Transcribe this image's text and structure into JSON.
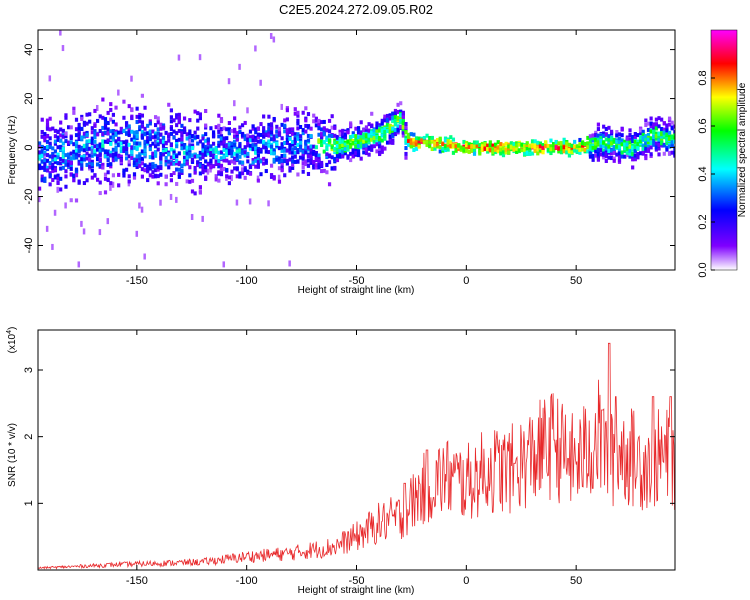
{
  "title": "C2E5.2024.272.09.05.R02",
  "colors": {
    "snr_line": "#e8282a",
    "axis": "#000000"
  },
  "chart_data": [
    {
      "type": "heatmap",
      "xlabel": "Height of straight line (km)",
      "ylabel": "Frequency (Hz)",
      "xlim": [
        -195,
        95
      ],
      "ylim": [
        -50,
        48
      ],
      "x_ticks": [
        -150,
        -100,
        -50,
        0,
        50
      ],
      "x_tick_labels": [
        "-150",
        "-100",
        "-50",
        "0",
        "50"
      ],
      "y_ticks": [
        -40,
        -20,
        0,
        20,
        40
      ],
      "y_tick_labels": [
        "-40",
        "-20",
        "0",
        "20",
        "40"
      ],
      "colorbar": {
        "label": "Normalized spectral amplitude",
        "range": [
          0,
          1
        ],
        "ticks": [
          0.0,
          0.2,
          0.4,
          0.6,
          0.8
        ],
        "tick_labels": [
          "0.0",
          "0.2",
          "0.4",
          "0.6",
          "0.8"
        ],
        "colormap": [
          "#ffffff",
          "#7f00ff",
          "#0000ff",
          "#00ffff",
          "#00ff00",
          "#ffff00",
          "#ff0000",
          "#ff00ff"
        ]
      },
      "ridge": {
        "comment_free_center_track": [
          [
            -195,
            -5
          ],
          [
            -175,
            0
          ],
          [
            -150,
            2
          ],
          [
            -125,
            -2
          ],
          [
            -100,
            -1
          ],
          [
            -80,
            2
          ],
          [
            -60,
            0
          ],
          [
            -40,
            5
          ],
          [
            -30,
            12
          ],
          [
            -28,
            3
          ],
          [
            -10,
            1
          ],
          [
            0,
            0
          ],
          [
            20,
            0
          ],
          [
            50,
            0
          ],
          [
            60,
            2
          ],
          [
            75,
            0
          ],
          [
            85,
            5
          ],
          [
            95,
            3
          ]
        ]
      }
    },
    {
      "type": "line",
      "xlabel": "Height of straight line (km)",
      "ylabel": "SNR (10 * v/v)",
      "y_multiplier": "(x10",
      "y_multiplier_exp": "4",
      "y_multiplier_close": ")",
      "xlim": [
        -195,
        95
      ],
      "ylim": [
        0,
        3.6
      ],
      "x_ticks": [
        -150,
        -100,
        -50,
        0,
        50
      ],
      "x_tick_labels": [
        "-150",
        "-100",
        "-50",
        "0",
        "50"
      ],
      "y_ticks": [
        1,
        2,
        3
      ],
      "y_tick_labels": [
        "1",
        "2",
        "3"
      ],
      "series": [
        {
          "envelope": [
            [
              -195,
              0.03
            ],
            [
              -180,
              0.05
            ],
            [
              -160,
              0.08
            ],
            [
              -140,
              0.1
            ],
            [
              -120,
              0.12
            ],
            [
              -100,
              0.2
            ],
            [
              -80,
              0.25
            ],
            [
              -60,
              0.35
            ],
            [
              -50,
              0.5
            ],
            [
              -40,
              0.7
            ],
            [
              -30,
              0.8
            ],
            [
              -20,
              1.2
            ],
            [
              -10,
              1.4
            ],
            [
              0,
              1.3
            ],
            [
              10,
              1.5
            ],
            [
              20,
              1.5
            ],
            [
              30,
              1.7
            ],
            [
              40,
              1.9
            ],
            [
              45,
              1.7
            ],
            [
              50,
              1.6
            ],
            [
              55,
              1.8
            ],
            [
              60,
              2.0
            ],
            [
              65,
              1.6
            ],
            [
              70,
              1.8
            ],
            [
              80,
              1.6
            ],
            [
              90,
              1.7
            ],
            [
              95,
              1.6
            ]
          ],
          "peaks": [
            [
              -28,
              1.3
            ],
            [
              -18,
              1.8
            ],
            [
              22,
              1.6
            ],
            [
              40,
              1.95
            ],
            [
              62,
              2.4
            ],
            [
              65,
              3.4
            ],
            [
              68,
              2.6
            ],
            [
              85,
              2.6
            ],
            [
              93,
              2.6
            ]
          ]
        }
      ]
    }
  ]
}
